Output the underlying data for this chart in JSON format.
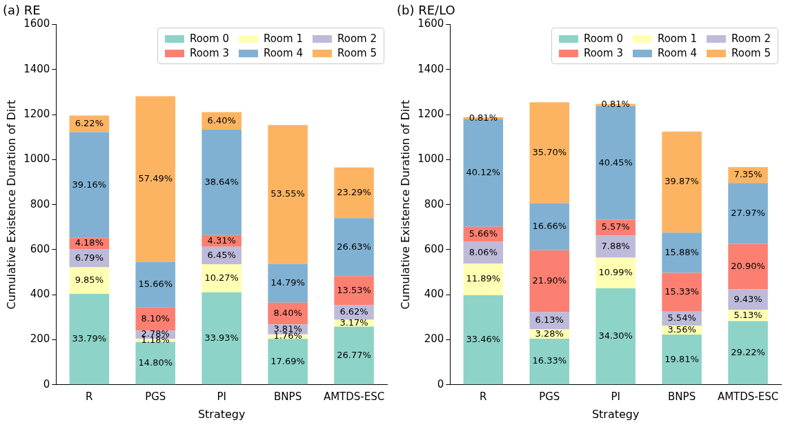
{
  "chart_data": [
    {
      "type": "bar",
      "title": "(a) RE",
      "xlabel": "Strategy",
      "ylabel": "Cumulative Existence Duration of Dirt",
      "categories": [
        "R",
        "PGS",
        "PI",
        "BNPS",
        "AMTDS-ESC"
      ],
      "stacked": true,
      "legend": "top right",
      "ylim": [
        0,
        1600
      ],
      "yticks": [
        0,
        200,
        400,
        600,
        800,
        1000,
        1200,
        1400,
        1600
      ],
      "series": [
        {
          "name": "Room 0",
          "color": "#8dd3c7",
          "values": [
            404,
            190,
            411,
            204,
            258
          ]
        },
        {
          "name": "Room 1",
          "color": "#ffffb3",
          "values": [
            118,
            15,
            124,
            20,
            31
          ]
        },
        {
          "name": "Room 2",
          "color": "#bebada",
          "values": [
            81,
            36,
            78,
            44,
            64
          ]
        },
        {
          "name": "Room 3",
          "color": "#fb8072",
          "values": [
            50,
            104,
            52,
            97,
            130
          ]
        },
        {
          "name": "Room 4",
          "color": "#80b1d3",
          "values": [
            469,
            201,
            468,
            171,
            257
          ]
        },
        {
          "name": "Room 5",
          "color": "#fdb462",
          "values": [
            74,
            736,
            78,
            618,
            225
          ]
        }
      ],
      "annotations": [
        "33.79%",
        "9.85%",
        "6.79%",
        "4.18%",
        "39.16%",
        "6.22%",
        "14.80%",
        "1.18%",
        "2.78%",
        "8.10%",
        "15.66%",
        "57.49%",
        "33.93%",
        "10.27%",
        "6.45%",
        "4.31%",
        "38.64%",
        "6.40%",
        "17.69%",
        "1.76%",
        "3.81%",
        "8.40%",
        "14.79%",
        "53.55%",
        "26.77%",
        "3.17%",
        "6.62%",
        "13.53%",
        "26.63%",
        "23.29%"
      ]
    },
    {
      "type": "bar",
      "title": "(b) RE/LO",
      "xlabel": "Strategy",
      "ylabel": "Cumulative Existence Duration of Dirt",
      "categories": [
        "R",
        "PGS",
        "PI",
        "BNPS",
        "AMTDS-ESC"
      ],
      "stacked": true,
      "legend": "top right",
      "ylim": [
        0,
        1600
      ],
      "yticks": [
        0,
        200,
        400,
        600,
        800,
        1000,
        1200,
        1400,
        1600
      ],
      "series": [
        {
          "name": "Room 0",
          "color": "#8dd3c7",
          "values": [
            398,
            205,
            428,
            223,
            283
          ]
        },
        {
          "name": "Room 1",
          "color": "#ffffb3",
          "values": [
            141,
            41,
            137,
            40,
            50
          ]
        },
        {
          "name": "Room 2",
          "color": "#bebada",
          "values": [
            96,
            77,
            98,
            62,
            91
          ]
        },
        {
          "name": "Room 3",
          "color": "#fb8072",
          "values": [
            67,
            275,
            70,
            172,
            202
          ]
        },
        {
          "name": "Room 4",
          "color": "#80b1d3",
          "values": [
            477,
            209,
            505,
            179,
            270
          ]
        },
        {
          "name": "Room 5",
          "color": "#fdb462",
          "values": [
            10,
            448,
            10,
            449,
            71
          ]
        }
      ],
      "annotations": [
        "33.46%",
        "11.89%",
        "8.06%",
        "5.66%",
        "40.12%",
        "0.81%",
        "16.33%",
        "3.28%",
        "6.13%",
        "21.90%",
        "16.66%",
        "35.70%",
        "34.30%",
        "10.99%",
        "7.88%",
        "5.57%",
        "40.45%",
        "0.81%",
        "19.81%",
        "3.56%",
        "5.54%",
        "15.33%",
        "15.88%",
        "39.87%",
        "29.22%",
        "5.13%",
        "9.43%",
        "20.90%",
        "27.97%",
        "7.35%"
      ]
    }
  ]
}
